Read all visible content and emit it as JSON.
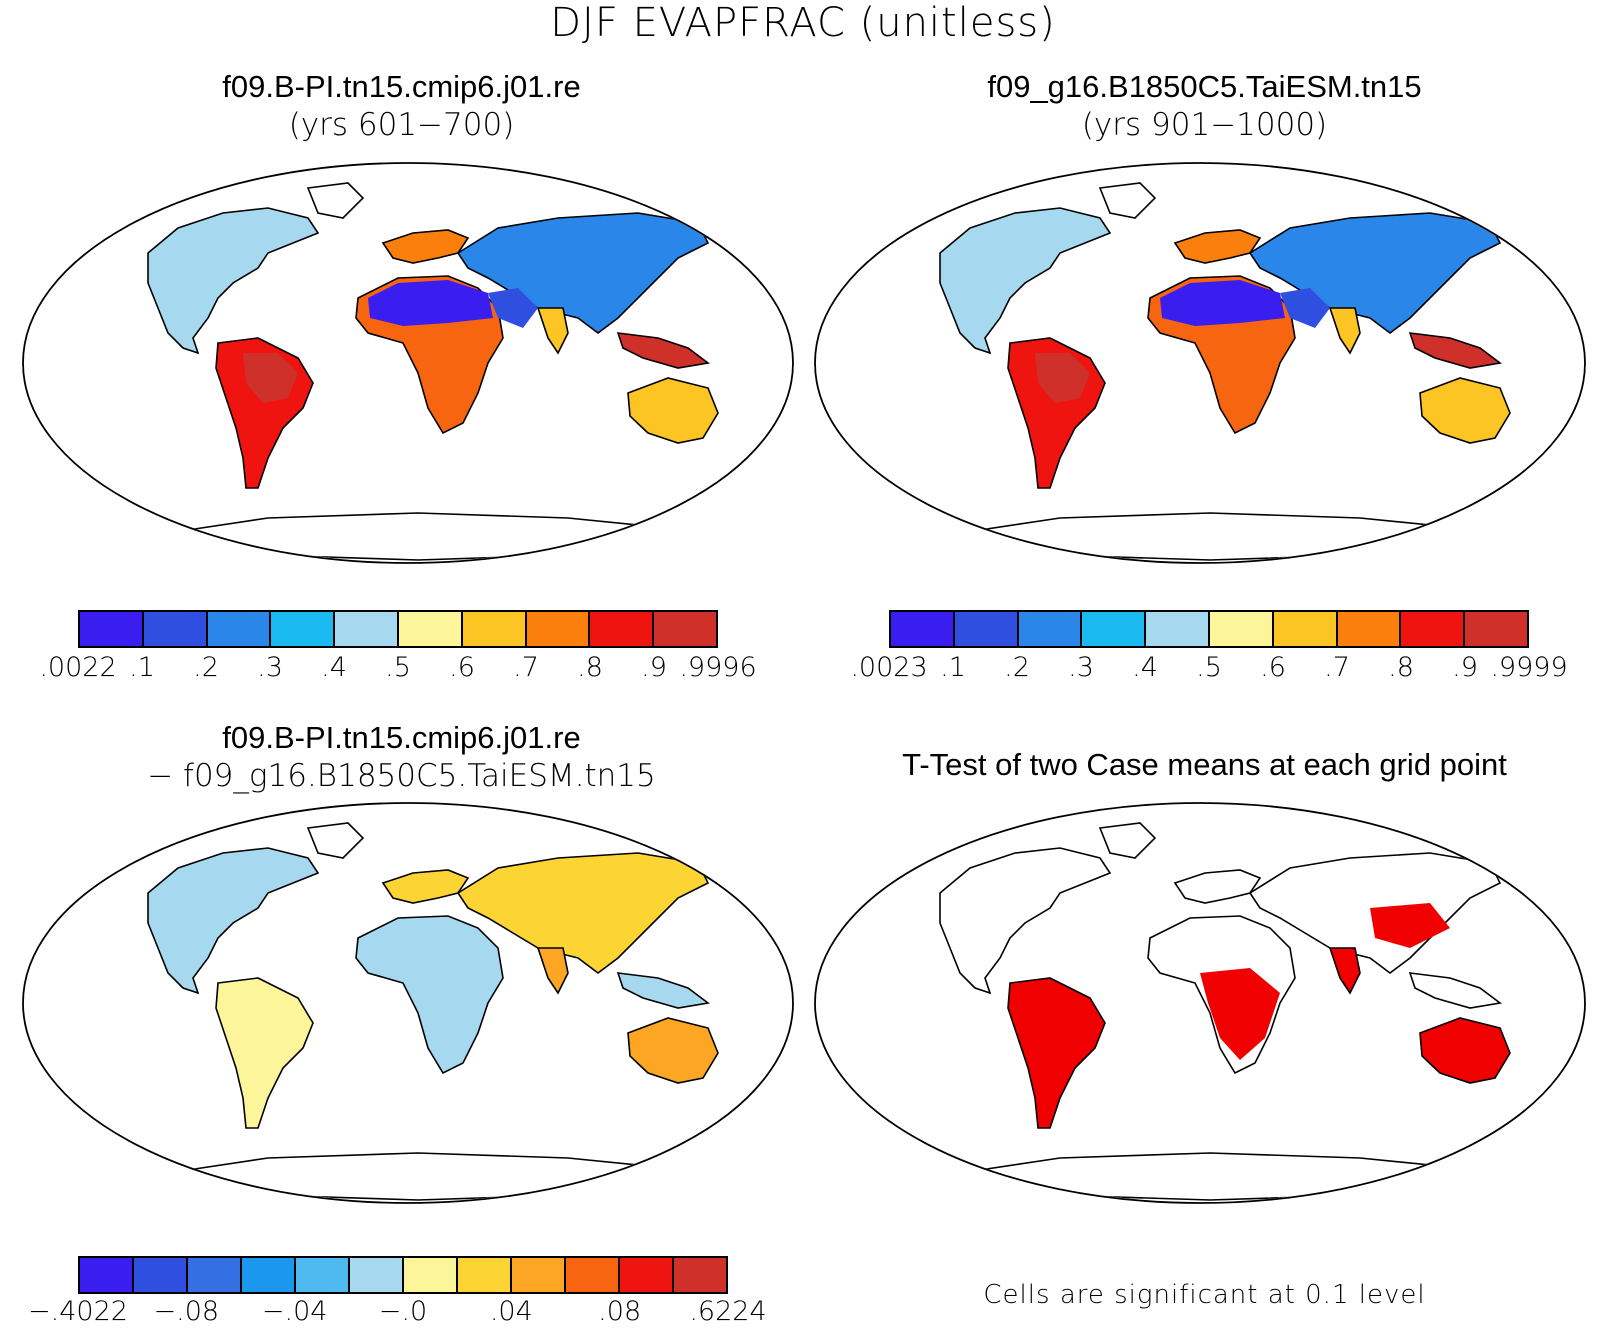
{
  "figure": {
    "title": "DJF EVAPFRAC (unitless)"
  },
  "panels": [
    {
      "id": "case1",
      "title_line1": "f09.B-PI.tn15.cmip6.j01.re",
      "title_line2": "(yrs 601−700)",
      "colorbar": {
        "colors": [
          "#3a1ef0",
          "#2f4fe0",
          "#2b86ea",
          "#1ab9f0",
          "#a6d9ef",
          "#fdf59a",
          "#fcc524",
          "#fb7f0d",
          "#f01410",
          "#d0302a"
        ],
        "labels": [
          ".0022",
          ".1",
          ".2",
          ".3",
          ".4",
          ".5",
          ".6",
          ".7",
          ".8",
          ".9",
          ".9996"
        ]
      }
    },
    {
      "id": "case2",
      "title_line1": "f09_g16.B1850C5.TaiESM.tn15",
      "title_line2": "(yrs 901−1000)",
      "colorbar": {
        "colors": [
          "#3a1ef0",
          "#2f4fe0",
          "#2b86ea",
          "#1ab9f0",
          "#a6d9ef",
          "#fdf59a",
          "#fcc524",
          "#fb7f0d",
          "#f01410",
          "#d0302a"
        ],
        "labels": [
          ".0023",
          ".1",
          ".2",
          ".3",
          ".4",
          ".5",
          ".6",
          ".7",
          ".8",
          ".9",
          ".9999"
        ]
      }
    },
    {
      "id": "difference",
      "title_line1": "f09.B-PI.tn15.cmip6.j01.re",
      "title_line2": "− f09_g16.B1850C5.TaiESM.tn15",
      "colorbar": {
        "colors": [
          "#3a1ef0",
          "#2f4fe0",
          "#346fe4",
          "#1b98ee",
          "#4ebaf0",
          "#a6d9ef",
          "#fdf59a",
          "#fcd535",
          "#fca623",
          "#f86510",
          "#f01410",
          "#d0302a"
        ],
        "labels": [
          "−.4022",
          "−.08",
          "−.04",
          "−.0",
          ".04",
          ".08",
          ".6224"
        ],
        "label_at_boundary": [
          0,
          2,
          4,
          6,
          8,
          10,
          12
        ]
      }
    },
    {
      "id": "ttest",
      "title": "T-Test of two Case means at each grid point",
      "note": "Cells are significant at 0.1 level",
      "significant_color": "#f00000"
    }
  ]
}
